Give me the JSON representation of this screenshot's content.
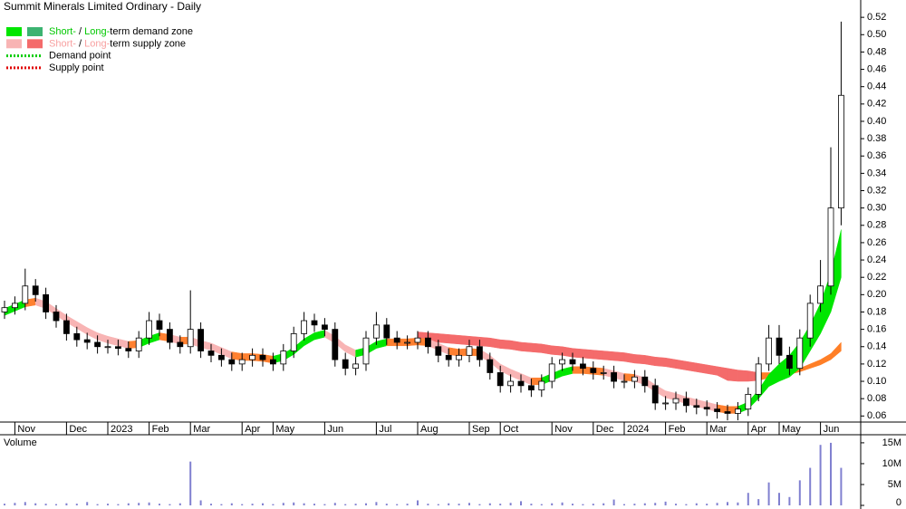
{
  "chart_data": {
    "type": "candlestick",
    "title": "Summit Minerals Limited Ordinary - Daily",
    "volume_label": "Volume",
    "legend": [
      {
        "swatches": [
          "#00e600",
          "#3cb371"
        ],
        "text_color": "#00c800",
        "short": "Short-",
        "sep": " / ",
        "long": "Long-",
        "text": "term demand zone"
      },
      {
        "swatches": [
          "#f8b4b4",
          "#f46b6b"
        ],
        "text_color": "#f8a0a0",
        "short": "Short-",
        "sep": " / ",
        "long": "Long-",
        "text": "term supply zone"
      },
      {
        "line_color": "#00cc00",
        "text": "Demand point"
      },
      {
        "line_color": "#e00000",
        "text": "Supply point"
      }
    ],
    "categories": [
      null,
      "Nov",
      null,
      null,
      null,
      null,
      "Dec",
      null,
      null,
      null,
      "2023",
      null,
      null,
      null,
      "Feb",
      null,
      null,
      null,
      "Mar",
      null,
      null,
      null,
      null,
      "Apr",
      null,
      null,
      "May",
      null,
      null,
      null,
      null,
      "Jun",
      null,
      null,
      null,
      null,
      "Jul",
      null,
      null,
      null,
      "Aug",
      null,
      null,
      null,
      null,
      "Sep",
      null,
      null,
      "Oct",
      null,
      null,
      null,
      null,
      "Nov",
      null,
      null,
      null,
      "Dec",
      null,
      null,
      "2024",
      null,
      null,
      null,
      "Feb",
      null,
      null,
      null,
      "Mar",
      null,
      null,
      null,
      "Apr",
      null,
      null,
      "May",
      null,
      null,
      null,
      "Jun",
      null,
      null
    ],
    "open": [
      0.18,
      0.185,
      0.19,
      0.21,
      0.2,
      0.18,
      0.17,
      0.155,
      0.148,
      0.145,
      0.14,
      0.14,
      0.138,
      0.135,
      0.15,
      0.17,
      0.16,
      0.145,
      0.14,
      0.16,
      0.135,
      0.13,
      0.125,
      0.12,
      0.125,
      0.13,
      0.125,
      0.12,
      0.135,
      0.155,
      0.17,
      0.165,
      0.16,
      0.125,
      0.115,
      0.12,
      0.15,
      0.165,
      0.15,
      0.145,
      0.145,
      0.15,
      0.14,
      0.13,
      0.125,
      0.13,
      0.14,
      0.125,
      0.11,
      0.095,
      0.1,
      0.095,
      0.09,
      0.1,
      0.12,
      0.125,
      0.12,
      0.115,
      0.11,
      0.11,
      0.1,
      0.1,
      0.105,
      0.095,
      0.075,
      0.075,
      0.08,
      0.072,
      0.07,
      0.068,
      0.065,
      0.063,
      0.068,
      0.085,
      0.12,
      0.15,
      0.13,
      0.115,
      0.15,
      0.19,
      0.21,
      0.3
    ],
    "high": [
      0.193,
      0.198,
      0.23,
      0.218,
      0.208,
      0.188,
      0.178,
      0.163,
      0.156,
      0.153,
      0.148,
      0.148,
      0.146,
      0.158,
      0.18,
      0.178,
      0.168,
      0.153,
      0.205,
      0.168,
      0.143,
      0.138,
      0.133,
      0.133,
      0.138,
      0.138,
      0.133,
      0.143,
      0.163,
      0.18,
      0.178,
      0.173,
      0.168,
      0.133,
      0.128,
      0.158,
      0.18,
      0.173,
      0.158,
      0.153,
      0.158,
      0.158,
      0.148,
      0.138,
      0.138,
      0.148,
      0.148,
      0.133,
      0.118,
      0.108,
      0.108,
      0.103,
      0.108,
      0.128,
      0.133,
      0.133,
      0.128,
      0.123,
      0.118,
      0.118,
      0.108,
      0.113,
      0.113,
      0.103,
      0.083,
      0.088,
      0.088,
      0.08,
      0.078,
      0.076,
      0.073,
      0.076,
      0.093,
      0.128,
      0.165,
      0.165,
      0.14,
      0.16,
      0.2,
      0.24,
      0.37,
      0.515
    ],
    "low": [
      0.172,
      0.177,
      0.182,
      0.192,
      0.172,
      0.162,
      0.147,
      0.14,
      0.137,
      0.132,
      0.132,
      0.13,
      0.127,
      0.127,
      0.142,
      0.152,
      0.137,
      0.132,
      0.132,
      0.127,
      0.122,
      0.117,
      0.112,
      0.112,
      0.117,
      0.117,
      0.112,
      0.112,
      0.127,
      0.147,
      0.157,
      0.152,
      0.117,
      0.107,
      0.107,
      0.112,
      0.142,
      0.142,
      0.137,
      0.137,
      0.137,
      0.132,
      0.122,
      0.117,
      0.117,
      0.122,
      0.117,
      0.102,
      0.087,
      0.087,
      0.087,
      0.082,
      0.082,
      0.092,
      0.112,
      0.112,
      0.107,
      0.102,
      0.102,
      0.092,
      0.092,
      0.092,
      0.087,
      0.067,
      0.067,
      0.067,
      0.064,
      0.062,
      0.06,
      0.057,
      0.055,
      0.055,
      0.06,
      0.077,
      0.112,
      0.12,
      0.107,
      0.107,
      0.14,
      0.18,
      0.2,
      0.28
    ],
    "close": [
      0.185,
      0.19,
      0.21,
      0.2,
      0.18,
      0.17,
      0.155,
      0.148,
      0.145,
      0.14,
      0.14,
      0.138,
      0.135,
      0.15,
      0.17,
      0.16,
      0.145,
      0.14,
      0.16,
      0.135,
      0.13,
      0.125,
      0.12,
      0.125,
      0.13,
      0.125,
      0.12,
      0.135,
      0.155,
      0.17,
      0.165,
      0.16,
      0.125,
      0.115,
      0.12,
      0.15,
      0.165,
      0.15,
      0.145,
      0.145,
      0.15,
      0.14,
      0.13,
      0.125,
      0.13,
      0.14,
      0.125,
      0.11,
      0.095,
      0.1,
      0.095,
      0.09,
      0.1,
      0.12,
      0.125,
      0.12,
      0.115,
      0.11,
      0.11,
      0.1,
      0.1,
      0.105,
      0.095,
      0.075,
      0.075,
      0.08,
      0.072,
      0.07,
      0.068,
      0.065,
      0.063,
      0.068,
      0.085,
      0.12,
      0.15,
      0.13,
      0.115,
      0.15,
      0.19,
      0.21,
      0.3,
      0.43
    ],
    "volume": [
      0.4,
      0.6,
      0.8,
      0.5,
      0.4,
      0.3,
      0.5,
      0.4,
      0.8,
      0.3,
      0.4,
      0.3,
      0.5,
      0.6,
      0.7,
      0.4,
      0.3,
      0.5,
      10.5,
      1.2,
      0.4,
      0.3,
      0.5,
      0.3,
      0.4,
      0.5,
      0.3,
      0.6,
      0.7,
      0.5,
      0.4,
      0.3,
      0.6,
      0.3,
      0.4,
      0.5,
      0.8,
      0.4,
      0.3,
      0.4,
      1.2,
      0.4,
      0.3,
      0.5,
      0.4,
      0.6,
      0.3,
      0.5,
      0.4,
      0.6,
      1,
      0.4,
      0.3,
      0.5,
      0.7,
      0.4,
      0.3,
      0.4,
      0.5,
      1.4,
      0.3,
      0.4,
      0.5,
      0.6,
      0.9,
      0.4,
      0.3,
      0.5,
      0.4,
      0.6,
      0.8,
      0.7,
      3,
      1.5,
      5.5,
      3,
      2,
      6,
      9,
      14.5,
      15,
      9
    ],
    "volume_color": "#8080d0",
    "zones": [
      {
        "upper": [
          0.184,
          0.189,
          0.194,
          0.196,
          0.192,
          0.184,
          0.176,
          0.169,
          0.162,
          0.156,
          0.152,
          0.149,
          0.146,
          0.147,
          0.152,
          0.156,
          0.154,
          0.151,
          0.151,
          0.147,
          0.144,
          0.139,
          0.134,
          0.132,
          0.132,
          0.131,
          0.129,
          0.132,
          0.139,
          0.149,
          0.156,
          0.159,
          0.152,
          0.142,
          0.136,
          0.139,
          0.146,
          0.149,
          0.149,
          0.149,
          0.15,
          0.149,
          0.144,
          0.139,
          0.137,
          0.138,
          0.137,
          0.13,
          0.12,
          0.114,
          0.109,
          0.104,
          0.104,
          0.109,
          0.114,
          0.117,
          0.117,
          0.116,
          0.115,
          0.112,
          0.109,
          0.108,
          0.104,
          0.096,
          0.089,
          0.086,
          0.082,
          0.079,
          0.076,
          0.073,
          0.071,
          0.071,
          0.076,
          0.09,
          0.108,
          0.12,
          0.13,
          0.145,
          0.165,
          0.19,
          0.225,
          0.275
        ],
        "lower": [
          0.176,
          0.181,
          0.186,
          0.188,
          0.184,
          0.176,
          0.168,
          0.161,
          0.154,
          0.148,
          0.144,
          0.141,
          0.138,
          0.139,
          0.144,
          0.148,
          0.146,
          0.143,
          0.143,
          0.139,
          0.136,
          0.131,
          0.126,
          0.124,
          0.124,
          0.123,
          0.121,
          0.124,
          0.131,
          0.141,
          0.148,
          0.151,
          0.144,
          0.134,
          0.128,
          0.131,
          0.138,
          0.141,
          0.141,
          0.141,
          0.142,
          0.141,
          0.136,
          0.131,
          0.129,
          0.13,
          0.129,
          0.122,
          0.112,
          0.106,
          0.101,
          0.096,
          0.096,
          0.101,
          0.106,
          0.109,
          0.109,
          0.108,
          0.107,
          0.104,
          0.101,
          0.1,
          0.096,
          0.088,
          0.081,
          0.078,
          0.074,
          0.071,
          0.068,
          0.065,
          0.063,
          0.063,
          0.068,
          0.08,
          0.094,
          0.1,
          0.105,
          0.115,
          0.135,
          0.155,
          0.18,
          0.22
        ],
        "colors": [
          "#00e600",
          "#00e600",
          "#ff8030",
          "#f8b4b4",
          "#f8b4b4",
          "#f8b4b4",
          "#f8b4b4",
          "#f8b4b4",
          "#f8b4b4",
          "#f8b4b4",
          "#f8b4b4",
          "#f8b4b4",
          "#ff8030",
          "#00e600",
          "#00e600",
          "#ff8030",
          "#f8b4b4",
          "#ff8030",
          "#f8b4b4",
          "#f8b4b4",
          "#f8b4b4",
          "#f8b4b4",
          "#ff8030",
          "#ff8030",
          "#ff8030",
          "#ff8030",
          "#00e600",
          "#00e600",
          "#00e600",
          "#00e600",
          "#00e600",
          "#f8b4b4",
          "#f8b4b4",
          "#f8b4b4",
          "#00e600",
          "#00e600",
          "#00e600",
          "#ff8030",
          "#ff8030",
          "#ff8030",
          "#ff8030",
          "#f8b4b4",
          "#f8b4b4",
          "#ff8030",
          "#ff8030",
          "#ff8030",
          "#f8b4b4",
          "#f8b4b4",
          "#f8b4b4",
          "#f8b4b4",
          "#f8b4b4",
          "#ff8030",
          "#00e600",
          "#00e600",
          "#00e600",
          "#ff8030",
          "#ff8030",
          "#ff8030",
          "#f8b4b4",
          "#f8b4b4",
          "#ff8030",
          "#f8b4b4",
          "#f8b4b4",
          "#f8b4b4",
          "#f8b4b4",
          "#f8b4b4",
          "#f8b4b4",
          "#f8b4b4",
          "#f8b4b4",
          "#ff8030",
          "#ff8030",
          "#00e600",
          "#00e600",
          "#00e600",
          "#00e600",
          "#00e600",
          "#00e600",
          "#00e600",
          "#00e600",
          "#00e600",
          "#00e600",
          "#00e600"
        ]
      },
      {
        "upper": [
          null,
          null,
          null,
          null,
          null,
          null,
          null,
          null,
          null,
          null,
          null,
          null,
          null,
          null,
          null,
          null,
          null,
          null,
          null,
          null,
          null,
          null,
          null,
          null,
          null,
          null,
          null,
          null,
          null,
          null,
          null,
          null,
          null,
          null,
          null,
          null,
          null,
          null,
          null,
          null,
          0.157,
          0.156,
          0.155,
          0.154,
          0.153,
          0.152,
          0.151,
          0.15,
          0.148,
          0.147,
          0.145,
          0.144,
          0.143,
          0.141,
          0.14,
          0.138,
          0.137,
          0.136,
          0.135,
          0.134,
          0.133,
          0.131,
          0.13,
          0.128,
          0.127,
          0.125,
          0.123,
          0.121,
          0.119,
          0.117,
          0.115,
          0.113,
          0.112,
          0.11,
          0.11,
          0.11,
          0.112,
          0.115,
          0.12,
          0.125,
          0.132,
          0.145
        ],
        "lower": [
          null,
          null,
          null,
          null,
          null,
          null,
          null,
          null,
          null,
          null,
          null,
          null,
          null,
          null,
          null,
          null,
          null,
          null,
          null,
          null,
          null,
          null,
          null,
          null,
          null,
          null,
          null,
          null,
          null,
          null,
          null,
          null,
          null,
          null,
          null,
          null,
          null,
          null,
          null,
          null,
          0.147,
          0.146,
          0.145,
          0.144,
          0.143,
          0.142,
          0.141,
          0.14,
          0.138,
          0.137,
          0.135,
          0.134,
          0.133,
          0.131,
          0.13,
          0.128,
          0.127,
          0.126,
          0.125,
          0.124,
          0.123,
          0.121,
          0.12,
          0.118,
          0.117,
          0.115,
          0.113,
          0.111,
          0.109,
          0.107,
          0.101,
          0.1,
          0.1,
          0.101,
          0.104,
          0.106,
          0.108,
          0.111,
          0.115,
          0.119,
          0.125,
          0.135
        ],
        "colors": [
          null,
          null,
          null,
          null,
          null,
          null,
          null,
          null,
          null,
          null,
          null,
          null,
          null,
          null,
          null,
          null,
          null,
          null,
          null,
          null,
          null,
          null,
          null,
          null,
          null,
          null,
          null,
          null,
          null,
          null,
          null,
          null,
          null,
          null,
          null,
          null,
          null,
          null,
          null,
          null,
          "#f46b6b",
          "#f46b6b",
          "#f46b6b",
          "#f46b6b",
          "#f46b6b",
          "#f46b6b",
          "#f46b6b",
          "#f46b6b",
          "#f46b6b",
          "#f46b6b",
          "#f46b6b",
          "#f46b6b",
          "#f46b6b",
          "#f46b6b",
          "#f46b6b",
          "#f46b6b",
          "#f46b6b",
          "#f46b6b",
          "#f46b6b",
          "#f46b6b",
          "#f46b6b",
          "#f46b6b",
          "#f46b6b",
          "#f46b6b",
          "#f46b6b",
          "#f46b6b",
          "#f46b6b",
          "#f46b6b",
          "#f46b6b",
          "#f46b6b",
          "#f46b6b",
          "#f46b6b",
          "#f46b6b",
          "#ff7f27",
          "#ff7f27",
          "#ff7f27",
          "#ff7f27",
          "#ff7f27",
          "#ff7f27",
          "#ff7f27",
          "#ff7f27",
          "#2e9e6e"
        ]
      }
    ],
    "ylim": [
      0.053,
      0.54
    ],
    "yticks": [
      0.06,
      0.08,
      {
        "value": 0.1,
        "label": "0.10"
      },
      0.12,
      0.14,
      0.16,
      0.18,
      {
        "value": 0.2,
        "label": "0.20"
      },
      0.22,
      0.24,
      0.26,
      0.28,
      {
        "value": 0.3,
        "label": "0.30"
      },
      0.32,
      0.34,
      0.36,
      0.38,
      {
        "value": 0.4,
        "label": "0.40"
      },
      0.42,
      0.44,
      0.46,
      0.48,
      {
        "value": 0.5,
        "label": "0.50"
      },
      0.52
    ],
    "vlim": [
      0,
      16.5
    ],
    "vticks": [
      0,
      {
        "value": 5,
        "label": "5M"
      },
      {
        "value": 10,
        "label": "10M"
      },
      {
        "value": 15,
        "label": "15M"
      }
    ]
  }
}
